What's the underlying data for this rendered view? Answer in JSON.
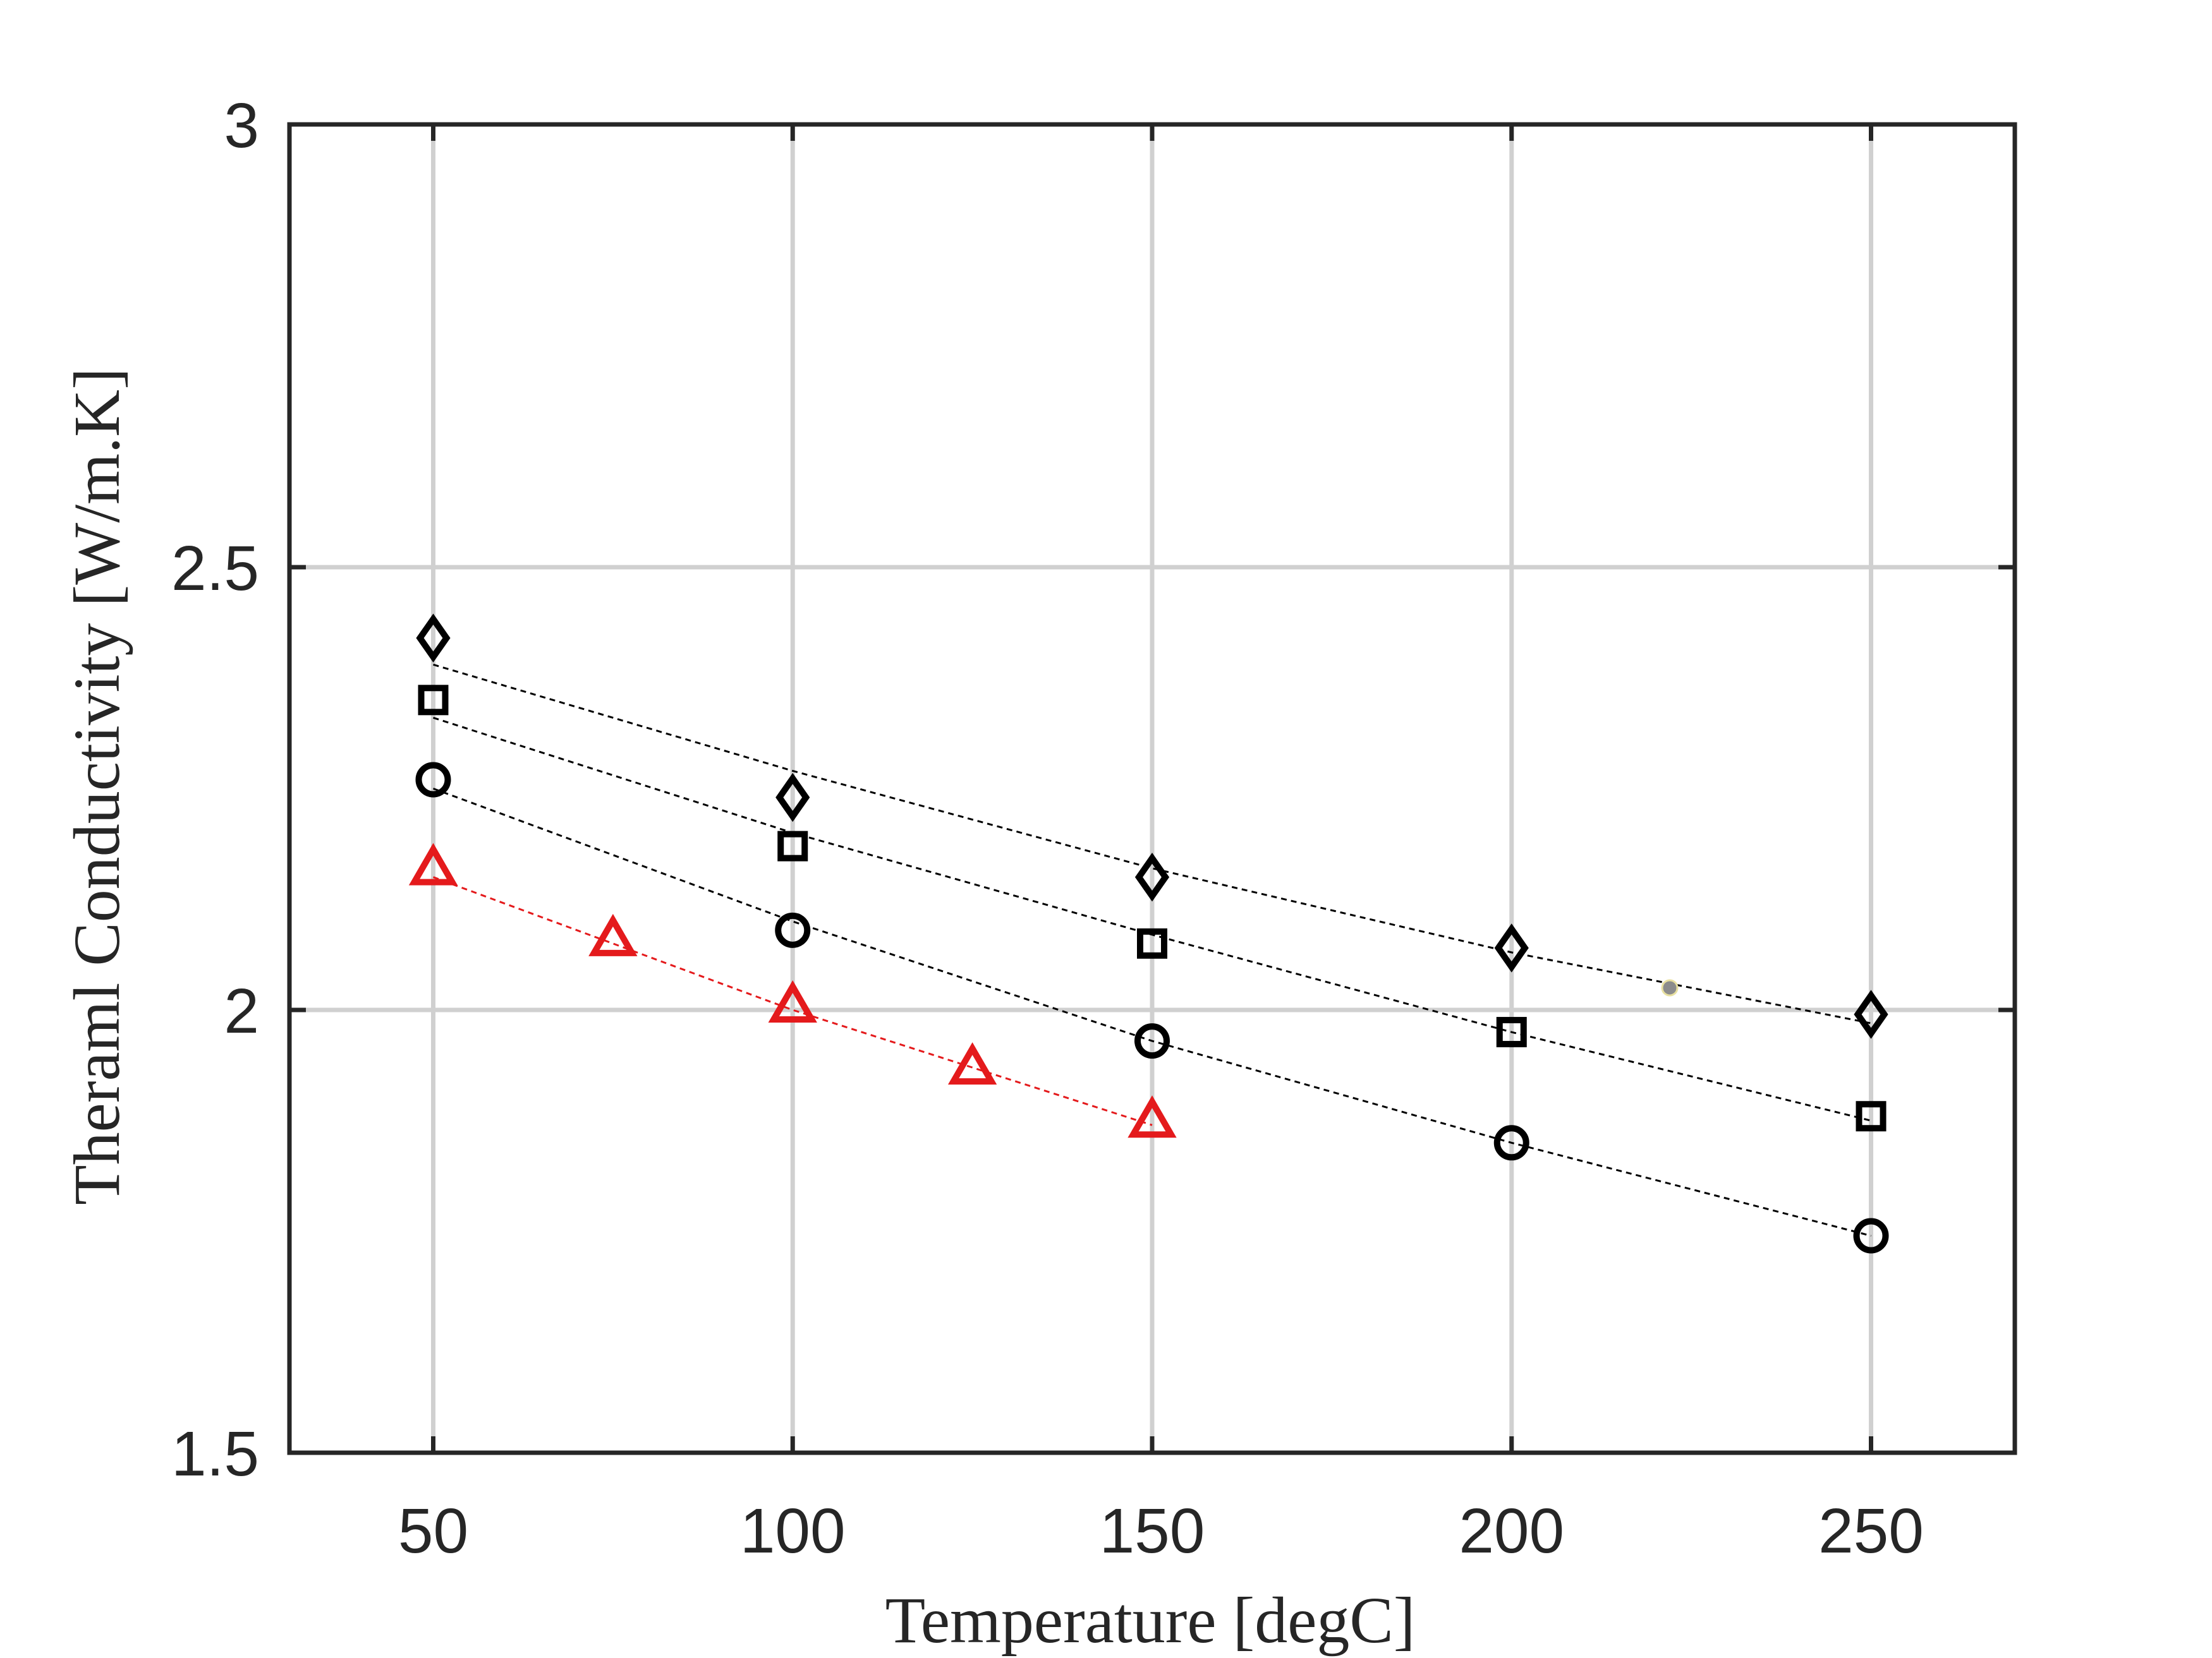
{
  "chart_data": {
    "type": "scatter",
    "title": "",
    "xlabel": "Temperature [degC]",
    "ylabel": "Theraml Conductivity [W/m.K]",
    "xlim": [
      30,
      270
    ],
    "ylim": [
      1.5,
      3.0
    ],
    "xticks": [
      50,
      100,
      150,
      200,
      250
    ],
    "xtick_labels": [
      "50",
      "100",
      "150",
      "200",
      "250"
    ],
    "yticks": [
      1.5,
      2.0,
      2.5,
      3.0
    ],
    "ytick_labels": [
      "1.5",
      "2",
      "2.5",
      "3"
    ],
    "grid": true,
    "legend": "none",
    "series": [
      {
        "marker": "diamond",
        "color": "#000000",
        "points": [
          [
            50,
            2.42
          ],
          [
            100,
            2.24
          ],
          [
            150,
            2.15
          ],
          [
            200,
            2.07
          ],
          [
            250,
            1.995
          ]
        ],
        "fit": [
          [
            50,
            2.39
          ],
          [
            100,
            2.27
          ],
          [
            150,
            2.16
          ],
          [
            200,
            2.065
          ],
          [
            250,
            1.985
          ]
        ]
      },
      {
        "marker": "square",
        "color": "#000000",
        "points": [
          [
            50,
            2.35
          ],
          [
            100,
            2.185
          ],
          [
            150,
            2.075
          ],
          [
            200,
            1.975
          ],
          [
            250,
            1.88
          ]
        ],
        "fit": [
          [
            50,
            2.33
          ],
          [
            100,
            2.2
          ],
          [
            150,
            2.085
          ],
          [
            200,
            1.975
          ],
          [
            250,
            1.875
          ]
        ]
      },
      {
        "marker": "circle",
        "color": "#000000",
        "points": [
          [
            50,
            2.26
          ],
          [
            100,
            2.09
          ],
          [
            150,
            1.965
          ],
          [
            200,
            1.85
          ],
          [
            250,
            1.745
          ]
        ],
        "fit": [
          [
            50,
            2.25
          ],
          [
            100,
            2.1
          ],
          [
            150,
            1.965
          ],
          [
            200,
            1.85
          ],
          [
            250,
            1.745
          ]
        ]
      },
      {
        "marker": "triangle",
        "color": "#e41a1c",
        "points": [
          [
            50,
            2.16
          ],
          [
            75,
            2.08
          ],
          [
            100,
            2.005
          ],
          [
            125,
            1.935
          ],
          [
            150,
            1.875
          ]
        ],
        "fit": [
          [
            50,
            2.15
          ],
          [
            75,
            2.075
          ],
          [
            100,
            2.0
          ],
          [
            125,
            1.935
          ],
          [
            150,
            1.87
          ]
        ]
      }
    ],
    "annotations": [
      {
        "marker": "dot",
        "color": "#8c8c8c",
        "x": 222,
        "y": 2.025
      }
    ]
  }
}
